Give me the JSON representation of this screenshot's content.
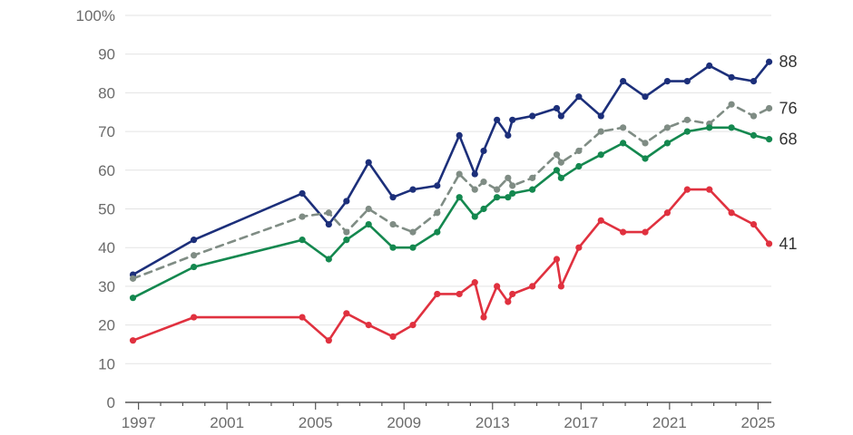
{
  "chart_data": {
    "type": "line",
    "title": "",
    "xlabel": "",
    "ylabel": "",
    "xlim": [
      1996.4,
      2025.6
    ],
    "ylim": [
      0,
      100
    ],
    "x_ticks": [
      1997,
      2001,
      2005,
      2009,
      2013,
      2017,
      2021,
      2025
    ],
    "x_tick_labels": [
      "1997",
      "2001",
      "2005",
      "2009",
      "2013",
      "2017",
      "2021",
      "2025"
    ],
    "y_ticks": [
      0,
      10,
      20,
      30,
      40,
      50,
      60,
      70,
      80,
      90,
      100
    ],
    "y_tick_labels": [
      "0",
      "10",
      "20",
      "30",
      "40",
      "50",
      "60",
      "70",
      "80",
      "90",
      "100%"
    ],
    "grid": true,
    "legend": "none",
    "series": [
      {
        "color": "#1c2f7a",
        "dashed": false,
        "end_label": "88",
        "x": [
          1996.75,
          1999.5,
          2004.4,
          2005.6,
          2006.4,
          2007.4,
          2008.5,
          2009.4,
          2010.5,
          2011.5,
          2012.2,
          2012.6,
          2013.2,
          2013.7,
          2013.9,
          2014.8,
          2015.9,
          2016.1,
          2016.9,
          2017.9,
          2018.9,
          2019.9,
          2020.9,
          2021.8,
          2022.8,
          2023.8,
          2024.8,
          2025.5
        ],
        "y": [
          33,
          42,
          54,
          46,
          52,
          62,
          53,
          55,
          56,
          69,
          59,
          65,
          73,
          69,
          73,
          74,
          76,
          74,
          79,
          74,
          83,
          79,
          83,
          83,
          87,
          84,
          83,
          88
        ]
      },
      {
        "color": "#7f8c84",
        "dashed": true,
        "end_label": "76",
        "x": [
          1996.75,
          1999.5,
          2004.4,
          2005.6,
          2006.4,
          2007.4,
          2008.5,
          2009.4,
          2010.5,
          2011.5,
          2012.2,
          2012.6,
          2013.2,
          2013.7,
          2013.9,
          2014.8,
          2015.9,
          2016.1,
          2016.9,
          2017.9,
          2018.9,
          2019.9,
          2020.9,
          2021.8,
          2022.8,
          2023.8,
          2024.8,
          2025.5
        ],
        "y": [
          32,
          38,
          48,
          49,
          44,
          50,
          46,
          44,
          49,
          59,
          55,
          57,
          55,
          58,
          56,
          58,
          64,
          62,
          65,
          70,
          71,
          67,
          71,
          73,
          72,
          77,
          74,
          76
        ]
      },
      {
        "color": "#14884f",
        "dashed": false,
        "end_label": "68",
        "x": [
          1996.75,
          1999.5,
          2004.4,
          2005.6,
          2006.4,
          2007.4,
          2008.5,
          2009.4,
          2010.5,
          2011.5,
          2012.2,
          2012.6,
          2013.2,
          2013.7,
          2013.9,
          2014.8,
          2015.9,
          2016.1,
          2016.9,
          2017.9,
          2018.9,
          2019.9,
          2020.9,
          2021.8,
          2022.8,
          2023.8,
          2024.8,
          2025.5
        ],
        "y": [
          27,
          35,
          42,
          37,
          42,
          46,
          40,
          40,
          44,
          53,
          48,
          50,
          53,
          53,
          54,
          55,
          60,
          58,
          61,
          64,
          67,
          63,
          67,
          70,
          71,
          71,
          69,
          68
        ]
      },
      {
        "color": "#e0313f",
        "dashed": false,
        "end_label": "41",
        "x": [
          1996.75,
          1999.5,
          2004.4,
          2005.6,
          2006.4,
          2007.4,
          2008.5,
          2009.4,
          2010.5,
          2011.5,
          2012.2,
          2012.6,
          2013.2,
          2013.7,
          2013.9,
          2014.8,
          2015.9,
          2016.1,
          2016.9,
          2017.9,
          2018.9,
          2019.9,
          2020.9,
          2021.8,
          2022.8,
          2023.8,
          2024.8,
          2025.5
        ],
        "y": [
          16,
          22,
          22,
          16,
          23,
          20,
          17,
          20,
          28,
          28,
          31,
          22,
          30,
          26,
          28,
          30,
          37,
          30,
          40,
          47,
          44,
          44,
          49,
          55,
          55,
          49,
          46,
          41
        ]
      }
    ]
  }
}
